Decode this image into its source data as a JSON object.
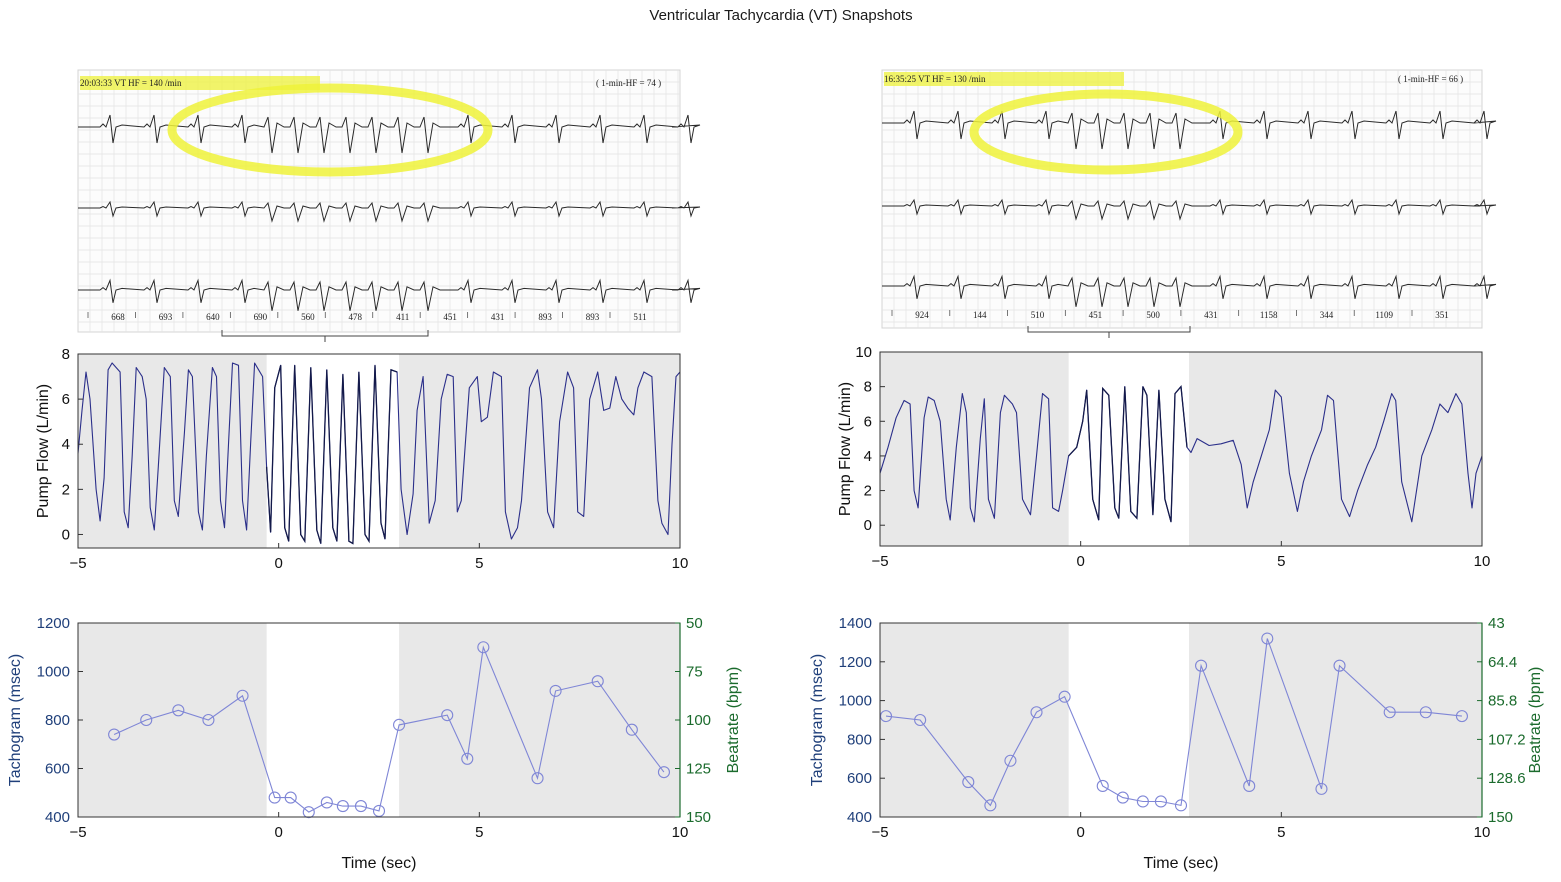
{
  "page": {
    "title": "Ventricular Tachycardia (VT) Snapshots"
  },
  "colors": {
    "flow_line": "#2b2f8a",
    "flow_line_vt": "#141a4a",
    "tach_line": "#7f86d6",
    "shade": "#e8e8e8",
    "left_axis": "#1f3f7a",
    "right_axis": "#1b6b2d",
    "highlight": "#eef23a"
  },
  "panels": [
    {
      "id": "left",
      "ecg": {
        "header": "20:03:33 VT  HF = 140 /min",
        "header_right": "( 1-min-HF = 74 )",
        "interval_labels": [
          "668",
          "693",
          "640",
          "690",
          "560",
          "478",
          "411",
          "451",
          "431",
          "893",
          "893",
          "511"
        ]
      },
      "vt_window": [
        -0.3,
        3.0
      ]
    },
    {
      "id": "right",
      "ecg": {
        "header": "16:35:25 VT  HF = 130 /min",
        "header_right": "( 1-min-HF = 66 )",
        "interval_labels": [
          "924",
          "144",
          "510",
          "451",
          "500",
          "431",
          "1158",
          "344",
          "1109",
          "351"
        ]
      },
      "vt_window": [
        -0.3,
        2.7
      ]
    }
  ],
  "chart_data": [
    {
      "type": "line",
      "panel": "left",
      "title": "",
      "xlabel": "",
      "ylabel": "Pump Flow (L/min)",
      "xlim": [
        -5,
        10
      ],
      "ylim": [
        -0.6,
        8
      ],
      "x_ticks": [
        -5,
        0,
        5,
        10
      ],
      "y_ticks": [
        0,
        2,
        4,
        6,
        8
      ],
      "series": [
        {
          "x": [
            -5.0,
            -4.9,
            -4.8,
            -4.7,
            -4.55,
            -4.45,
            -4.35,
            -4.25,
            -4.15,
            -3.95,
            -3.85,
            -3.75,
            -3.65,
            -3.55,
            -3.4,
            -3.3,
            -3.2,
            -3.1,
            -3.0,
            -2.85,
            -2.7,
            -2.6,
            -2.5,
            -2.35,
            -2.25,
            -2.15,
            -2.0,
            -1.9,
            -1.8,
            -1.65,
            -1.55,
            -1.45,
            -1.35,
            -1.25,
            -1.15,
            -1.0,
            -0.9,
            -0.8,
            -0.7,
            -0.6,
            -0.5,
            -0.4,
            -0.3,
            -0.2,
            -0.1,
            0.05,
            0.15,
            0.25,
            0.4,
            0.55,
            0.65,
            0.8,
            0.95,
            1.05,
            1.2,
            1.35,
            1.45,
            1.6,
            1.75,
            1.85,
            2.0,
            2.15,
            2.25,
            2.4,
            2.55,
            2.65,
            2.8,
            2.95,
            3.05,
            3.2,
            3.35,
            3.45,
            3.6,
            3.75,
            3.9,
            4.05,
            4.2,
            4.35,
            4.45,
            4.55,
            4.75,
            4.95,
            5.05,
            5.2,
            5.35,
            5.55,
            5.65,
            5.8,
            5.95,
            6.05,
            6.25,
            6.45,
            6.55,
            6.7,
            6.85,
            7.0,
            7.2,
            7.35,
            7.45,
            7.6,
            7.75,
            7.95,
            8.1,
            8.25,
            8.4,
            8.55,
            8.7,
            8.85,
            8.95,
            9.1,
            9.3,
            9.45,
            9.55,
            9.7,
            9.8,
            9.9,
            10.0
          ],
          "values": [
            3.6,
            5.5,
            7.2,
            6.0,
            2.0,
            0.6,
            2.5,
            7.3,
            7.6,
            7.2,
            1.0,
            0.3,
            3.5,
            7.4,
            7.0,
            6.0,
            1.2,
            0.2,
            3.0,
            7.4,
            7.0,
            1.5,
            0.8,
            4.5,
            7.3,
            7.0,
            1.0,
            0.2,
            3.5,
            7.4,
            7.0,
            1.5,
            0.3,
            4.0,
            7.6,
            7.5,
            1.5,
            0.2,
            4.0,
            7.6,
            7.3,
            7.0,
            3.0,
            0.1,
            6.5,
            7.5,
            0.3,
            -0.3,
            7.5,
            0.0,
            -0.3,
            7.4,
            0.2,
            -0.4,
            7.3,
            0.3,
            -0.3,
            7.1,
            -0.3,
            -0.4,
            7.2,
            0.0,
            -0.3,
            7.5,
            0.5,
            -0.2,
            7.3,
            7.2,
            2.0,
            0.0,
            1.8,
            5.5,
            7.0,
            0.5,
            1.5,
            6.0,
            7.1,
            7.0,
            1.0,
            1.5,
            6.5,
            7.0,
            5.0,
            5.2,
            7.2,
            7.0,
            1.0,
            -0.2,
            0.3,
            1.5,
            6.5,
            7.3,
            6.0,
            1.0,
            0.3,
            5.0,
            7.2,
            6.5,
            1.0,
            0.8,
            6.0,
            7.2,
            5.5,
            5.6,
            7.0,
            6.0,
            5.6,
            5.3,
            6.5,
            7.2,
            7.0,
            1.5,
            0.5,
            0.0,
            4.0,
            7.0,
            7.2
          ]
        }
      ]
    },
    {
      "type": "line",
      "panel": "right",
      "title": "",
      "xlabel": "",
      "ylabel": "Pump Flow (L/min)",
      "xlim": [
        -5,
        10
      ],
      "ylim": [
        -1.2,
        10
      ],
      "x_ticks": [
        -5,
        0,
        5,
        10
      ],
      "y_ticks": [
        0,
        2,
        4,
        6,
        8,
        10
      ],
      "series": [
        {
          "x": [
            -5.0,
            -4.8,
            -4.6,
            -4.4,
            -4.25,
            -4.15,
            -4.05,
            -3.9,
            -3.8,
            -3.65,
            -3.5,
            -3.35,
            -3.25,
            -3.1,
            -2.95,
            -2.85,
            -2.75,
            -2.65,
            -2.5,
            -2.4,
            -2.3,
            -2.15,
            -2.0,
            -1.9,
            -1.7,
            -1.6,
            -1.45,
            -1.25,
            -1.1,
            -0.95,
            -0.8,
            -0.7,
            -0.55,
            -0.45,
            -0.3,
            -0.1,
            0.05,
            0.15,
            0.3,
            0.45,
            0.55,
            0.7,
            0.85,
            0.95,
            1.1,
            1.25,
            1.4,
            1.55,
            1.65,
            1.8,
            1.95,
            2.1,
            2.25,
            2.35,
            2.5,
            2.65,
            2.75,
            2.9,
            3.2,
            3.5,
            3.8,
            4.0,
            4.15,
            4.3,
            4.5,
            4.7,
            4.85,
            5.0,
            5.2,
            5.4,
            5.55,
            5.75,
            6.0,
            6.15,
            6.3,
            6.5,
            6.7,
            6.9,
            7.15,
            7.35,
            7.55,
            7.75,
            7.85,
            8.0,
            8.25,
            8.5,
            8.75,
            8.95,
            9.15,
            9.35,
            9.5,
            9.65,
            9.75,
            9.85,
            10.0
          ],
          "values": [
            3.0,
            4.5,
            6.2,
            7.2,
            7.0,
            2.0,
            1.0,
            6.2,
            7.4,
            7.2,
            6.0,
            1.5,
            0.3,
            4.5,
            7.6,
            6.5,
            1.0,
            0.2,
            5.0,
            7.3,
            1.5,
            0.4,
            6.5,
            7.5,
            7.0,
            6.5,
            1.5,
            0.6,
            4.0,
            7.6,
            7.3,
            1.0,
            0.8,
            2.0,
            4.0,
            4.5,
            6.0,
            7.8,
            1.5,
            0.3,
            7.9,
            7.5,
            1.0,
            0.4,
            8.0,
            0.8,
            0.4,
            8.0,
            7.5,
            0.6,
            7.8,
            1.5,
            0.2,
            7.6,
            8.0,
            4.5,
            4.2,
            5.0,
            4.6,
            4.7,
            4.9,
            3.5,
            1.0,
            2.5,
            4.0,
            5.5,
            7.8,
            7.4,
            3.0,
            0.8,
            2.5,
            4.0,
            5.5,
            7.5,
            7.2,
            1.5,
            0.5,
            2.0,
            3.5,
            4.5,
            6.0,
            7.6,
            7.2,
            2.5,
            0.2,
            4.0,
            5.5,
            7.0,
            6.5,
            7.6,
            7.0,
            3.0,
            1.0,
            3.0,
            4.0
          ]
        }
      ]
    },
    {
      "type": "line",
      "panel": "left",
      "title": "",
      "xlabel": "Time (sec)",
      "ylabel": "Tachogram (msec)",
      "y2label": "Beatrate (bpm)",
      "xlim": [
        -5,
        10
      ],
      "ylim": [
        400,
        1200
      ],
      "x_ticks": [
        -5,
        0,
        5,
        10
      ],
      "y_ticks": [
        400,
        600,
        800,
        1000,
        1200
      ],
      "y2_ticks": [
        50,
        75,
        100,
        125,
        150
      ],
      "series": [
        {
          "marker": "circle",
          "x": [
            -4.1,
            -3.3,
            -2.5,
            -1.75,
            -0.9,
            -0.1,
            0.3,
            0.75,
            1.2,
            1.6,
            2.05,
            2.5,
            3.0,
            4.2,
            4.7,
            5.1,
            6.45,
            6.9,
            7.95,
            8.8,
            9.6
          ],
          "values": [
            740,
            800,
            840,
            800,
            900,
            480,
            480,
            420,
            460,
            445,
            445,
            425,
            780,
            820,
            640,
            1100,
            560,
            920,
            960,
            760,
            585
          ]
        }
      ]
    },
    {
      "type": "line",
      "panel": "right",
      "title": "",
      "xlabel": "Time (sec)",
      "ylabel": "Tachogram (msec)",
      "y2label": "Beatrate (bpm)",
      "xlim": [
        -5,
        10
      ],
      "ylim": [
        400,
        1400
      ],
      "x_ticks": [
        -5,
        0,
        5,
        10
      ],
      "y_ticks": [
        400,
        600,
        800,
        1000,
        1200,
        1400
      ],
      "y2_ticks": [
        43,
        64.4,
        85.8,
        107.2,
        128.6,
        150
      ],
      "series": [
        {
          "marker": "circle",
          "x": [
            -4.85,
            -4.0,
            -2.8,
            -2.25,
            -1.75,
            -1.1,
            -0.4,
            0.55,
            1.05,
            1.55,
            2.0,
            2.5,
            3.0,
            4.2,
            4.65,
            6.0,
            6.45,
            7.7,
            8.6,
            9.5
          ],
          "values": [
            920,
            900,
            580,
            460,
            690,
            940,
            1020,
            560,
            500,
            480,
            480,
            460,
            1180,
            560,
            1320,
            545,
            1180,
            940,
            940,
            920
          ]
        }
      ]
    }
  ]
}
